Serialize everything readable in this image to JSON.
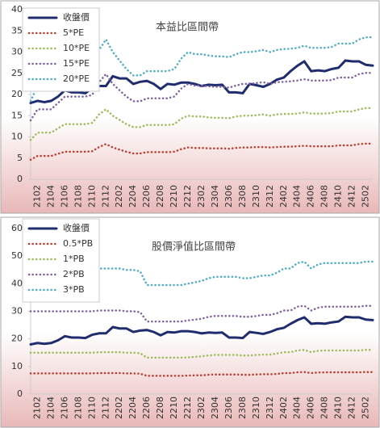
{
  "chart_data": [
    {
      "type": "line",
      "title": "本益比區間帶",
      "categories": [
        null,
        "2102",
        null,
        "2104",
        null,
        "2106",
        null,
        "2108",
        null,
        "2110",
        null,
        "2112",
        null,
        "2202",
        null,
        "2204",
        null,
        "2206",
        null,
        "2208",
        null,
        "2210",
        null,
        "2212",
        null,
        "2302",
        null,
        "2304",
        null,
        "2306",
        null,
        "2308",
        null,
        "2310",
        null,
        "2312",
        null,
        "2402",
        null,
        "2404",
        null,
        "2406",
        null,
        "2408",
        null,
        "2410",
        null,
        "2412",
        null,
        "2502",
        null
      ],
      "ylim": [
        0,
        40
      ],
      "yticks": [
        0,
        5,
        10,
        15,
        20,
        25,
        30,
        35,
        40
      ],
      "legend": "upper left",
      "series": [
        {
          "name": "收盤價",
          "color": "#1f2d6e",
          "style": "solid",
          "values": [
            18,
            18.5,
            18.2,
            18.5,
            19.5,
            21,
            20.5,
            20.5,
            20.3,
            21.5,
            22,
            22,
            24.3,
            23.8,
            23.8,
            22.5,
            23,
            23.2,
            22.5,
            21.3,
            22.5,
            22.3,
            22.8,
            22.8,
            22.5,
            22,
            22.3,
            22.2,
            22.3,
            20.5,
            20.5,
            20.3,
            22.5,
            22.2,
            21.8,
            22.5,
            23.5,
            24,
            25.5,
            26.8,
            27.8,
            25.5,
            25.7,
            25.5,
            26,
            26.3,
            28,
            27.8,
            27.8,
            27,
            26.8
          ]
        },
        {
          "name": "5*PE",
          "color": "#c0392b",
          "style": "dotted",
          "values": [
            4.6,
            5.5,
            5.5,
            5.5,
            6,
            6.5,
            6.5,
            6.5,
            6.5,
            6.6,
            7.6,
            8.3,
            7.5,
            7,
            6.5,
            6.1,
            6.1,
            6.4,
            6.4,
            6.4,
            6.4,
            6.5,
            7.1,
            7.5,
            7.4,
            7.4,
            7.3,
            7.3,
            7.3,
            7.2,
            7.4,
            7.5,
            7.5,
            7.6,
            7.6,
            7.5,
            7.6,
            7.7,
            7.7,
            7.8,
            7.9,
            7.8,
            7.8,
            7.8,
            7.8,
            8,
            8,
            8,
            8.3,
            8.4,
            8.4
          ]
        },
        {
          "name": "10*PE",
          "color": "#9bbb59",
          "style": "dotted",
          "values": [
            9.3,
            11,
            11,
            11,
            12,
            13,
            13,
            13,
            13,
            13.3,
            15.3,
            16.5,
            15,
            14,
            13,
            12.3,
            12.3,
            12.8,
            12.8,
            12.8,
            12.8,
            13,
            14.3,
            15,
            14.8,
            14.8,
            14.6,
            14.5,
            14.5,
            14.4,
            14.8,
            15,
            15,
            15.1,
            15.3,
            15,
            15.3,
            15.4,
            15.4,
            15.5,
            15.8,
            15.5,
            15.5,
            15.5,
            15.6,
            16,
            16,
            16,
            16.5,
            16.8,
            16.8
          ]
        },
        {
          "name": "15*PE",
          "color": "#7f5fa3",
          "style": "dotted",
          "values": [
            13.9,
            16.5,
            16.5,
            16.5,
            18,
            19.5,
            19.5,
            19.5,
            19.5,
            19.9,
            22.9,
            24.8,
            22.5,
            21,
            19.5,
            18.4,
            18.4,
            19.1,
            19.1,
            19.1,
            19.1,
            19.5,
            21.4,
            22.5,
            22.1,
            22.1,
            21.9,
            21.8,
            21.8,
            21.6,
            22.1,
            22.5,
            22.5,
            22.7,
            22.9,
            22.5,
            22.9,
            23,
            23.1,
            23.3,
            23.6,
            23.3,
            23.3,
            23.3,
            23.4,
            24,
            24,
            24,
            24.8,
            25.1,
            25.1
          ]
        },
        {
          "name": "20*PE",
          "color": "#4bacc6",
          "style": "dotted",
          "values": [
            18.5,
            22,
            22,
            22,
            24,
            26,
            26,
            26,
            26,
            26.5,
            30.5,
            33,
            30,
            28,
            26,
            24.5,
            24.5,
            25.5,
            25.5,
            25.5,
            25.5,
            26,
            28.5,
            30,
            29.5,
            29.5,
            29.2,
            29,
            29,
            28.8,
            29.5,
            30,
            30,
            30.2,
            30.5,
            30,
            30.5,
            30.7,
            30.8,
            31,
            31.5,
            31,
            31,
            31,
            31.2,
            32,
            32,
            32,
            33,
            33.5,
            33.5
          ]
        }
      ]
    },
    {
      "type": "line",
      "title": "股價淨值比區間帶",
      "categories": [
        null,
        "2102",
        null,
        "2104",
        null,
        "2106",
        null,
        "2108",
        null,
        "2110",
        null,
        "2112",
        null,
        "2202",
        null,
        "2204",
        null,
        "2206",
        null,
        "2208",
        null,
        "2210",
        null,
        "2212",
        null,
        "2302",
        null,
        "2304",
        null,
        "2306",
        null,
        "2308",
        null,
        "2310",
        null,
        "2312",
        null,
        "2402",
        null,
        "2404",
        null,
        "2406",
        null,
        "2408",
        null,
        "2410",
        null,
        "2412",
        null,
        "2502",
        null
      ],
      "ylim": [
        0,
        60
      ],
      "yticks": [
        0,
        10,
        20,
        30,
        40,
        50,
        60
      ],
      "legend": "upper left",
      "series": [
        {
          "name": "收盤價",
          "color": "#1f2d6e",
          "style": "solid",
          "values": [
            18,
            18.5,
            18.2,
            18.5,
            19.5,
            21,
            20.5,
            20.5,
            20.3,
            21.5,
            22,
            22,
            24.3,
            23.8,
            23.8,
            22.5,
            23,
            23.2,
            22.5,
            21.3,
            22.5,
            22.3,
            22.8,
            22.8,
            22.5,
            22,
            22.3,
            22.2,
            22.3,
            20.5,
            20.5,
            20.3,
            22.5,
            22.2,
            21.8,
            22.5,
            23.5,
            24,
            25.5,
            26.8,
            27.8,
            25.5,
            25.7,
            25.5,
            26,
            26.3,
            28,
            27.8,
            27.8,
            27,
            26.8
          ]
        },
        {
          "name": "0.5*PB",
          "color": "#c0392b",
          "style": "dotted",
          "values": [
            7.5,
            7.5,
            7.5,
            7.5,
            7.5,
            7.5,
            7.5,
            7.5,
            7.5,
            7.5,
            7.6,
            7.6,
            7.6,
            7.6,
            7.5,
            7.5,
            7.4,
            6.6,
            6.6,
            6.6,
            6.6,
            6.6,
            6.6,
            6.7,
            6.8,
            6.8,
            7,
            7.1,
            7.1,
            7.1,
            7.1,
            7,
            7,
            7.1,
            7.2,
            7.2,
            7.3,
            7.6,
            7.6,
            7.9,
            8,
            7.6,
            7.8,
            7.9,
            7.9,
            7.9,
            7.9,
            7.9,
            7.9,
            8,
            8
          ]
        },
        {
          "name": "1*PB",
          "color": "#9bbb59",
          "style": "dotted",
          "values": [
            15,
            15,
            15,
            15,
            15,
            15,
            15,
            15,
            15,
            15,
            15.2,
            15.2,
            15.2,
            15.2,
            15,
            15,
            14.8,
            13.2,
            13.2,
            13.2,
            13.2,
            13.2,
            13.2,
            13.3,
            13.5,
            13.7,
            14,
            14.2,
            14.2,
            14.2,
            14.2,
            14,
            14,
            14.2,
            14.3,
            14.3,
            14.7,
            15.2,
            15.2,
            15.8,
            16,
            15.2,
            15.7,
            15.8,
            15.8,
            15.8,
            15.8,
            15.8,
            15.8,
            16,
            16
          ]
        },
        {
          "name": "2*PB",
          "color": "#7f5fa3",
          "style": "dotted",
          "values": [
            30,
            30,
            30,
            30,
            30,
            30,
            30,
            30,
            30,
            30,
            30.3,
            30.3,
            30.3,
            30.3,
            30,
            30,
            29.7,
            26.3,
            26.3,
            26.3,
            26.3,
            26.3,
            26.3,
            26.7,
            27,
            27.3,
            28,
            28.3,
            28.3,
            28.3,
            28.3,
            28,
            28,
            28.3,
            28.7,
            28.7,
            29.3,
            30.3,
            30.3,
            31.7,
            32,
            30.3,
            31.3,
            31.7,
            31.7,
            31.7,
            31.7,
            31.7,
            31.7,
            32,
            32
          ]
        },
        {
          "name": "3*PB",
          "color": "#4bacc6",
          "style": "dotted",
          "values": [
            45,
            45,
            45,
            45,
            45,
            45,
            45,
            45,
            45,
            45,
            45.5,
            45.5,
            45.5,
            45.5,
            45,
            45,
            44.5,
            39.5,
            39.5,
            39.5,
            39.5,
            39.5,
            39.5,
            40,
            40.5,
            41,
            42,
            42.5,
            42.5,
            42.5,
            42.5,
            42,
            42,
            42.5,
            43,
            43,
            44,
            45.5,
            45.5,
            47.5,
            48,
            45.5,
            47,
            47.5,
            47.5,
            47.5,
            47.5,
            47.5,
            47.5,
            48,
            48
          ]
        }
      ]
    }
  ]
}
